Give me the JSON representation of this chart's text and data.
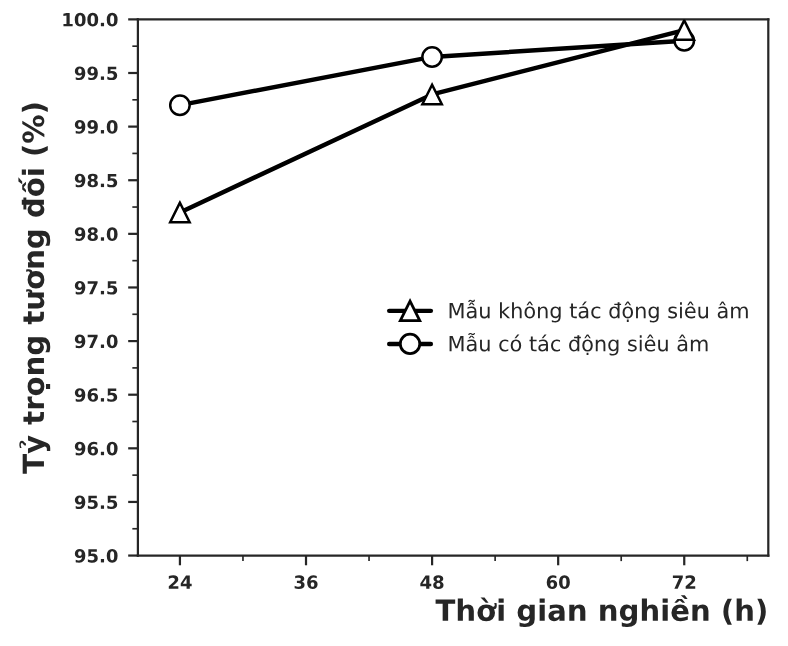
{
  "chart_data": {
    "type": "line",
    "xlabel": "Thời gian nghiền (h)",
    "ylabel": "Tỷ trọng tương đối (%)",
    "x": [
      24,
      48,
      72
    ],
    "series": [
      {
        "name": "Mẫu không tác động siêu âm",
        "color": "#000000",
        "marker": "triangle",
        "values": [
          98.2,
          99.3,
          99.9
        ]
      },
      {
        "name": "Mẫu có tác động siêu âm",
        "color": "#000000",
        "marker": "circle",
        "values": [
          99.2,
          99.65,
          99.8
        ]
      }
    ],
    "xlim": [
      20,
      80
    ],
    "xticks": [
      24,
      36,
      48,
      60,
      72
    ],
    "ylim": [
      95.0,
      100.0
    ],
    "yticks": [
      {
        "value": 95.0,
        "label": "95.0"
      },
      {
        "value": 95.5,
        "label": "95.5"
      },
      {
        "value": 96.0,
        "label": "96.0"
      },
      {
        "value": 96.5,
        "label": "96.5"
      },
      {
        "value": 97.0,
        "label": "97.0"
      },
      {
        "value": 97.5,
        "label": "97.5"
      },
      {
        "value": 98.0,
        "label": "98.0"
      },
      {
        "value": 98.5,
        "label": "98.5"
      },
      {
        "value": 99.0,
        "label": "99.0"
      },
      {
        "value": 99.5,
        "label": "99.5"
      },
      {
        "value": 100.0,
        "label": "100.0"
      }
    ],
    "grid": false,
    "legend": "center right",
    "line_style": "solid"
  }
}
